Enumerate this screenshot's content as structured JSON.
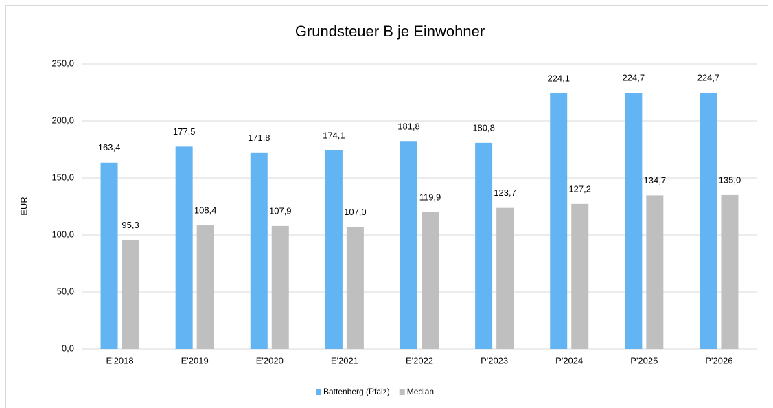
{
  "chart_data": {
    "type": "bar",
    "title": "Grundsteuer B je Einwohner",
    "y_label": "EUR",
    "categories": [
      "E'2018",
      "E'2019",
      "E'2020",
      "E'2021",
      "E'2022",
      "P'2023",
      "P'2024",
      "P'2025",
      "P'2026"
    ],
    "series": [
      {
        "name": "Battenberg (Pfalz)",
        "color": "#63b4f3",
        "values": [
          163.4,
          177.5,
          171.8,
          174.1,
          181.8,
          180.8,
          224.1,
          224.7,
          224.7
        ],
        "value_labels": [
          "163,4",
          "177,5",
          "171,8",
          "174,1",
          "181,8",
          "180,8",
          "224,1",
          "224,7",
          "224,7"
        ]
      },
      {
        "name": "Median",
        "color": "#bfbfbf",
        "values": [
          95.3,
          108.4,
          107.9,
          107.0,
          119.9,
          123.7,
          127.2,
          134.7,
          135.0
        ],
        "value_labels": [
          "95,3",
          "108,4",
          "107,9",
          "107,0",
          "119,9",
          "123,7",
          "127,2",
          "134,7",
          "135,0"
        ]
      }
    ],
    "ylim": [
      0,
      250
    ],
    "yticks": [
      {
        "value": 0,
        "label": "0,0"
      },
      {
        "value": 50,
        "label": "50,0"
      },
      {
        "value": 100,
        "label": "100,0"
      },
      {
        "value": 150,
        "label": "150,0"
      },
      {
        "value": 200,
        "label": "200,0"
      },
      {
        "value": 250,
        "label": "250,0"
      }
    ],
    "grid": true,
    "legend": "bottom"
  }
}
